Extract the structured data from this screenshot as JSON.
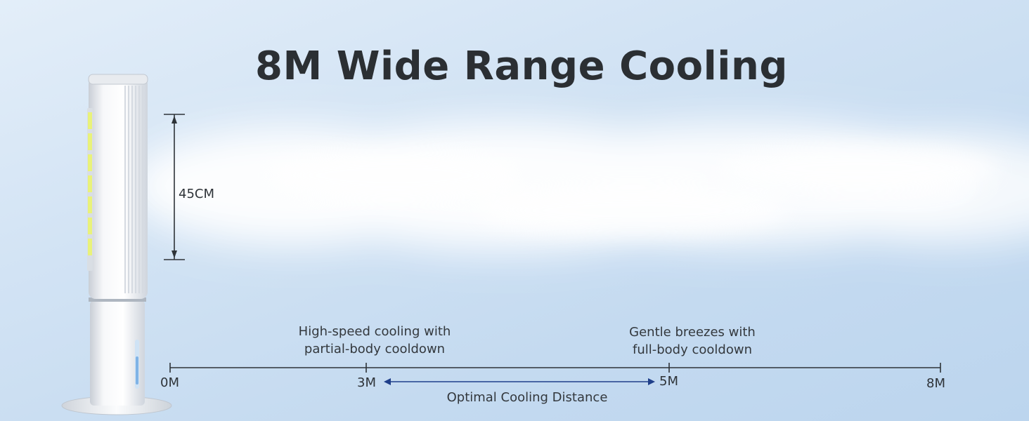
{
  "title": "8M Wide Range Cooling",
  "height_label": "45CM",
  "notes": {
    "near": [
      "High-speed cooling with",
      "partial-body cooldown"
    ],
    "far": [
      "Gentle breezes with",
      "full-body cooldown"
    ]
  },
  "distance_labels": [
    "0M",
    "3M",
    "5M",
    "8M"
  ],
  "optimal_label": "Optimal Cooling Distance",
  "colors": {
    "line": "#2e3338",
    "arrow": "#1f3f8a",
    "title": "#2b2f33",
    "led": "#e9f27a"
  }
}
